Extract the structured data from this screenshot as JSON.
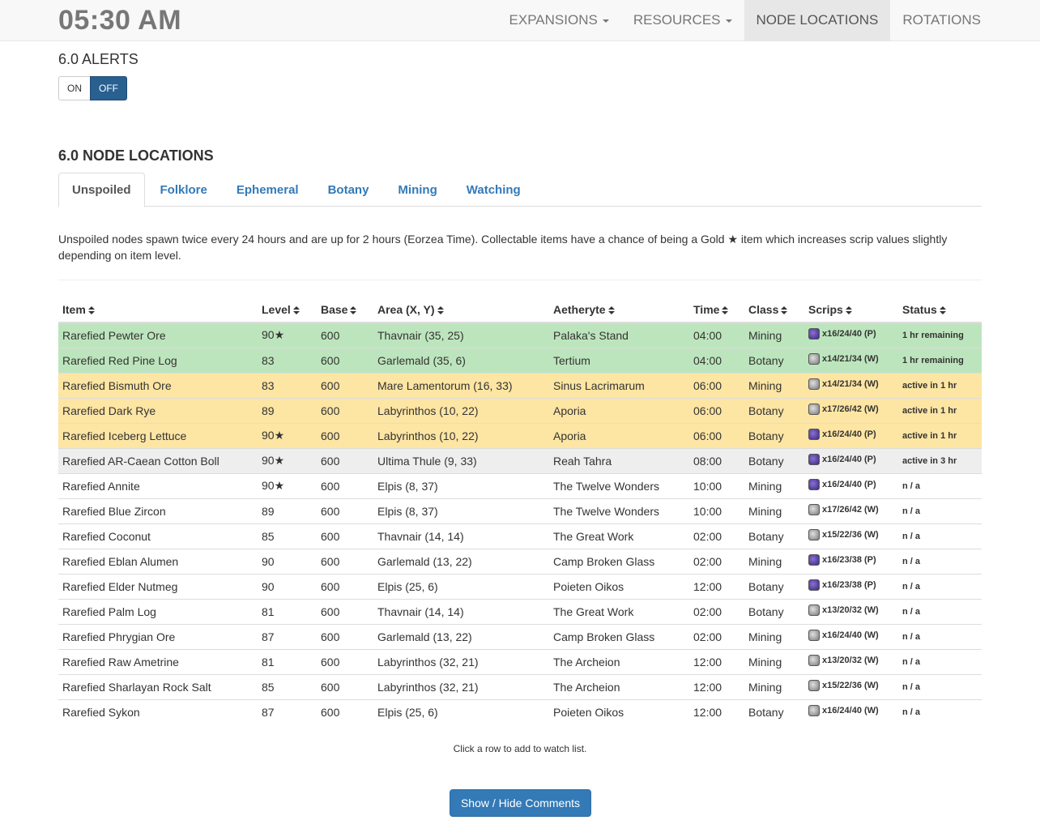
{
  "header": {
    "clock": "05:30 AM",
    "nav": [
      {
        "label": "EXPANSIONS",
        "dropdown": true,
        "active": false
      },
      {
        "label": "RESOURCES",
        "dropdown": true,
        "active": false
      },
      {
        "label": "NODE LOCATIONS",
        "dropdown": false,
        "active": true
      },
      {
        "label": "ROTATIONS",
        "dropdown": false,
        "active": false
      }
    ]
  },
  "alerts": {
    "title": "6.0 ALERTS",
    "on_label": "ON",
    "off_label": "OFF",
    "selected": "OFF"
  },
  "section": {
    "title": "6.0 NODE LOCATIONS",
    "tabs": [
      "Unspoiled",
      "Folklore",
      "Ephemeral",
      "Botany",
      "Mining",
      "Watching"
    ],
    "active_tab": "Unspoiled",
    "description": "Unspoiled nodes spawn twice every 24 hours and are up for 2 hours (Eorzea Time). Collectable items have a chance of being a Gold ★ item which increases scrip values slightly depending on item level."
  },
  "table": {
    "columns": [
      "Item",
      "Level",
      "Base",
      "Area (X, Y)",
      "Aetheryte",
      "Time",
      "Class",
      "Scrips",
      "Status"
    ],
    "rows": [
      {
        "item": "Rarefied Pewter Ore",
        "level": "90★",
        "base": "600",
        "area": "Thavnair (35, 25)",
        "aetheryte": "Palaka's Stand",
        "time": "04:00",
        "class": "Mining",
        "scrips": "x16/24/40 (P)",
        "scrip_type": "purple",
        "status": "1 hr remaining",
        "state": "success"
      },
      {
        "item": "Rarefied Red Pine Log",
        "level": "83",
        "base": "600",
        "area": "Garlemald (35, 6)",
        "aetheryte": "Tertium",
        "time": "04:00",
        "class": "Botany",
        "scrips": "x14/21/34 (W)",
        "scrip_type": "white",
        "status": "1 hr remaining",
        "state": "success"
      },
      {
        "item": "Rarefied Bismuth Ore",
        "level": "83",
        "base": "600",
        "area": "Mare Lamentorum (16, 33)",
        "aetheryte": "Sinus Lacrimarum",
        "time": "06:00",
        "class": "Mining",
        "scrips": "x14/21/34 (W)",
        "scrip_type": "white",
        "status": "active in 1 hr",
        "state": "warning"
      },
      {
        "item": "Rarefied Dark Rye",
        "level": "89",
        "base": "600",
        "area": "Labyrinthos (10, 22)",
        "aetheryte": "Aporia",
        "time": "06:00",
        "class": "Botany",
        "scrips": "x17/26/42 (W)",
        "scrip_type": "white",
        "status": "active in 1 hr",
        "state": "warning"
      },
      {
        "item": "Rarefied Iceberg Lettuce",
        "level": "90★",
        "base": "600",
        "area": "Labyrinthos (10, 22)",
        "aetheryte": "Aporia",
        "time": "06:00",
        "class": "Botany",
        "scrips": "x16/24/40 (P)",
        "scrip_type": "purple",
        "status": "active in 1 hr",
        "state": "warning"
      },
      {
        "item": "Rarefied AR-Caean Cotton Boll",
        "level": "90★",
        "base": "600",
        "area": "Ultima Thule (9, 33)",
        "aetheryte": "Reah Tahra",
        "time": "08:00",
        "class": "Botany",
        "scrips": "x16/24/40 (P)",
        "scrip_type": "purple",
        "status": "active in 3 hr",
        "state": "active"
      },
      {
        "item": "Rarefied Annite",
        "level": "90★",
        "base": "600",
        "area": "Elpis (8, 37)",
        "aetheryte": "The Twelve Wonders",
        "time": "10:00",
        "class": "Mining",
        "scrips": "x16/24/40 (P)",
        "scrip_type": "purple",
        "status": "n / a",
        "state": ""
      },
      {
        "item": "Rarefied Blue Zircon",
        "level": "89",
        "base": "600",
        "area": "Elpis (8, 37)",
        "aetheryte": "The Twelve Wonders",
        "time": "10:00",
        "class": "Mining",
        "scrips": "x17/26/42 (W)",
        "scrip_type": "white",
        "status": "n / a",
        "state": ""
      },
      {
        "item": "Rarefied Coconut",
        "level": "85",
        "base": "600",
        "area": "Thavnair (14, 14)",
        "aetheryte": "The Great Work",
        "time": "02:00",
        "class": "Botany",
        "scrips": "x15/22/36 (W)",
        "scrip_type": "white",
        "status": "n / a",
        "state": ""
      },
      {
        "item": "Rarefied Eblan Alumen",
        "level": "90",
        "base": "600",
        "area": "Garlemald (13, 22)",
        "aetheryte": "Camp Broken Glass",
        "time": "02:00",
        "class": "Mining",
        "scrips": "x16/23/38 (P)",
        "scrip_type": "purple",
        "status": "n / a",
        "state": ""
      },
      {
        "item": "Rarefied Elder Nutmeg",
        "level": "90",
        "base": "600",
        "area": "Elpis (25, 6)",
        "aetheryte": "Poieten Oikos",
        "time": "12:00",
        "class": "Botany",
        "scrips": "x16/23/38 (P)",
        "scrip_type": "purple",
        "status": "n / a",
        "state": ""
      },
      {
        "item": "Rarefied Palm Log",
        "level": "81",
        "base": "600",
        "area": "Thavnair (14, 14)",
        "aetheryte": "The Great Work",
        "time": "02:00",
        "class": "Botany",
        "scrips": "x13/20/32 (W)",
        "scrip_type": "white",
        "status": "n / a",
        "state": ""
      },
      {
        "item": "Rarefied Phrygian Ore",
        "level": "87",
        "base": "600",
        "area": "Garlemald (13, 22)",
        "aetheryte": "Camp Broken Glass",
        "time": "02:00",
        "class": "Mining",
        "scrips": "x16/24/40 (W)",
        "scrip_type": "white",
        "status": "n / a",
        "state": ""
      },
      {
        "item": "Rarefied Raw Ametrine",
        "level": "81",
        "base": "600",
        "area": "Labyrinthos (32, 21)",
        "aetheryte": "The Archeion",
        "time": "12:00",
        "class": "Mining",
        "scrips": "x13/20/32 (W)",
        "scrip_type": "white",
        "status": "n / a",
        "state": ""
      },
      {
        "item": "Rarefied Sharlayan Rock Salt",
        "level": "85",
        "base": "600",
        "area": "Labyrinthos (32, 21)",
        "aetheryte": "The Archeion",
        "time": "12:00",
        "class": "Mining",
        "scrips": "x15/22/36 (W)",
        "scrip_type": "white",
        "status": "n / a",
        "state": ""
      },
      {
        "item": "Rarefied Sykon",
        "level": "87",
        "base": "600",
        "area": "Elpis (25, 6)",
        "aetheryte": "Poieten Oikos",
        "time": "12:00",
        "class": "Botany",
        "scrips": "x16/24/40 (W)",
        "scrip_type": "white",
        "status": "n / a",
        "state": ""
      }
    ]
  },
  "footer": {
    "hint": "Click a row to add to watch list.",
    "button_label": "Show / Hide Comments"
  },
  "colors": {
    "success_row": "#bde5bd",
    "warning_row": "#fde5a3",
    "active_row": "#eeeeee",
    "primary": "#337ab7",
    "toggle_selected": "#286090"
  }
}
